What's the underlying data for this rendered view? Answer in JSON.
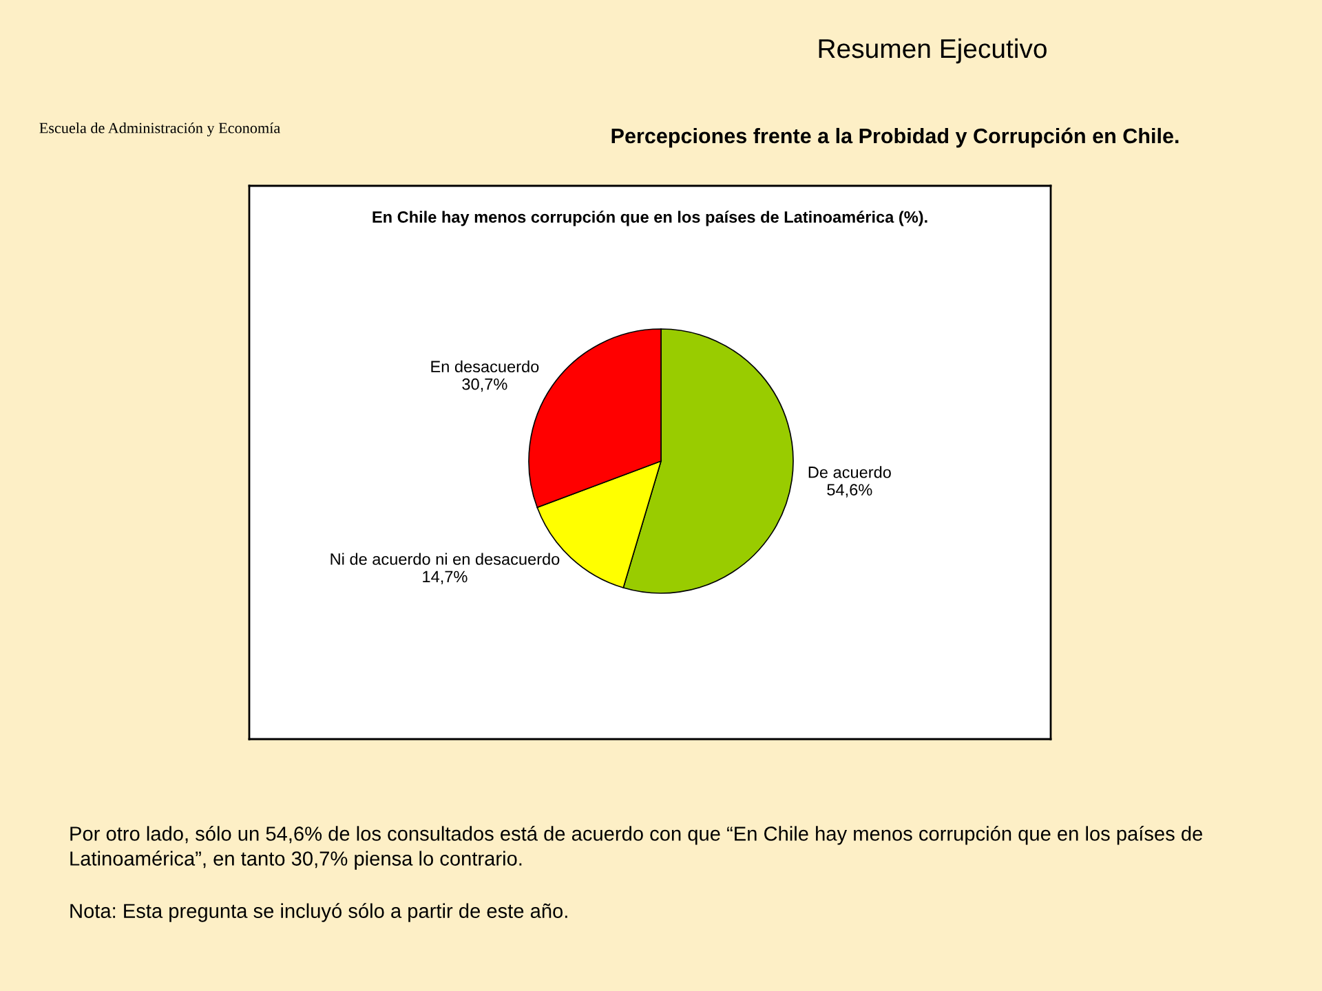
{
  "chart_data": {
    "type": "pie",
    "title": "En Chile hay menos corrupción que en los países de Latinoamérica (%).",
    "categories": [
      "De acuerdo",
      "Ni de acuerdo ni en desacuerdo",
      "En desacuerdo"
    ],
    "values": [
      54.6,
      14.7,
      30.7
    ],
    "value_labels": [
      "54,6%",
      "14,7%",
      "30,7%"
    ],
    "colors": [
      "#99cc00",
      "#ffff00",
      "#ff0000"
    ],
    "legend": false,
    "annotations": [
      "Resumen Ejecutivo",
      "Percepciones frente a la Probidad y Corrupción en Chile.",
      "Escuela de Administración y Economía",
      "Por otro lado, sólo un 54,6% de los consultados está de acuerdo con que “En Chile hay menos corrupción que en los países de Latinoamérica”, en tanto 30,7% piensa lo contrario.",
      "Nota: Esta pregunta se incluyó sólo a partir de este año."
    ]
  }
}
